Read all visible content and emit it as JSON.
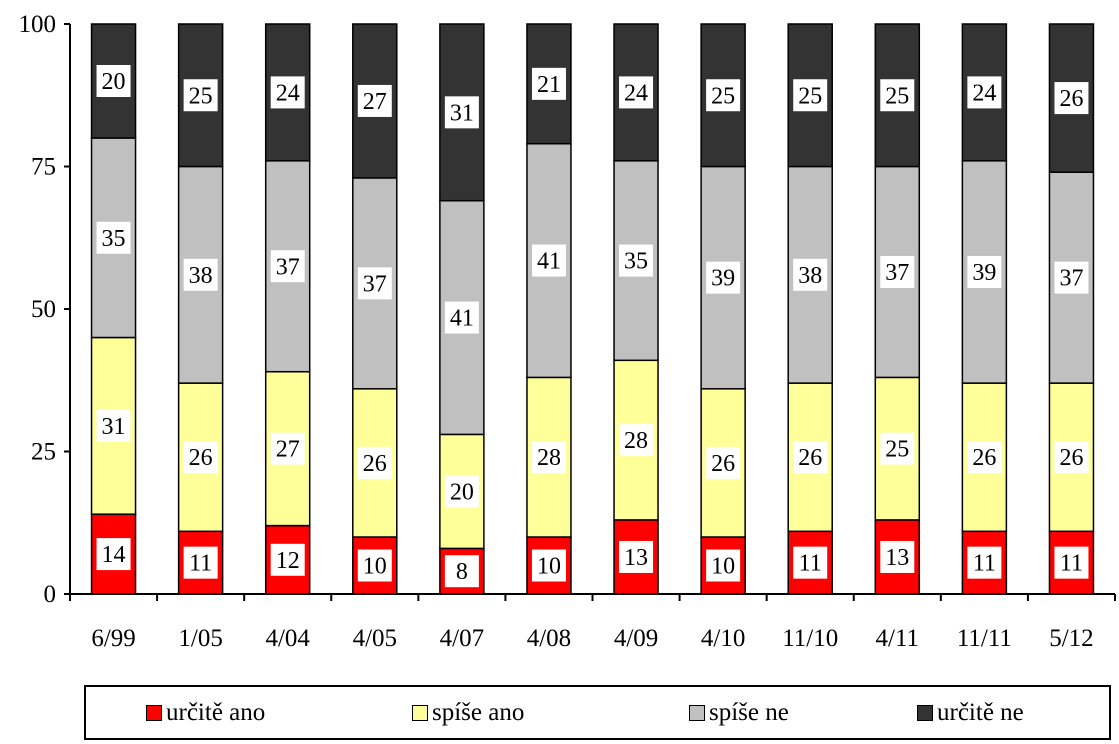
{
  "chart_data": {
    "type": "bar",
    "stacked": true,
    "categories": [
      "6/99",
      "1/05",
      "4/04",
      "4/05",
      "4/07",
      "4/08",
      "4/09",
      "4/10",
      "11/10",
      "4/11",
      "11/11",
      "5/12"
    ],
    "series": [
      {
        "name": "určitě ano",
        "color": "#ff0000",
        "values": [
          14,
          11,
          12,
          10,
          8,
          10,
          13,
          10,
          11,
          13,
          11,
          11
        ]
      },
      {
        "name": "spíše ano",
        "color": "#ffff99",
        "values": [
          31,
          26,
          27,
          26,
          20,
          28,
          28,
          26,
          26,
          25,
          26,
          26
        ]
      },
      {
        "name": "spíše ne",
        "color": "#c0c0c0",
        "values": [
          35,
          38,
          37,
          37,
          41,
          41,
          35,
          39,
          38,
          37,
          39,
          37
        ]
      },
      {
        "name": "určitě ne",
        "color": "#333333",
        "values": [
          20,
          25,
          24,
          27,
          31,
          21,
          24,
          25,
          25,
          25,
          24,
          26
        ]
      }
    ],
    "ylim": [
      0,
      100
    ],
    "yticks": [
      0,
      25,
      50,
      75,
      100
    ],
    "grid": false,
    "legend_position": "bottom"
  }
}
